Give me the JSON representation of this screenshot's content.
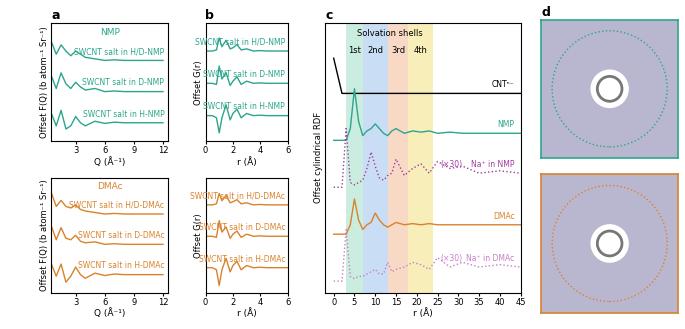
{
  "chart_data": [
    {
      "type": "line",
      "title": "a",
      "annotations": [
        "NMP"
      ],
      "annotation_color": "#2ca58d",
      "xlabel": "Q (Å⁻¹)",
      "ylabel": "Offset F(Q) (b atom⁻¹ Sr⁻¹)",
      "x": [
        0.5,
        1,
        1.5,
        2,
        2.5,
        3,
        3.5,
        4,
        5,
        6,
        7,
        8,
        9,
        10,
        11,
        12
      ],
      "xlim": [
        0.5,
        12.5
      ],
      "xticks": [
        3,
        6,
        9,
        12
      ],
      "ylim": [
        -0.6,
        3.2
      ],
      "tick_labels": "x",
      "series": [
        {
          "name": "SWCNT salt in H/D-NMP",
          "color": "#2ca58d",
          "values": [
            2.6,
            2.2,
            2.5,
            2.3,
            2.15,
            2.3,
            2.2,
            2.1,
            2.05,
            2.0,
            2.02,
            2.0,
            2.0,
            2.0,
            2.0,
            2.0
          ]
        },
        {
          "name": "SWCNT salt in D-NMP",
          "color": "#2ca58d",
          "values": [
            1.5,
            1.1,
            1.6,
            1.25,
            1.1,
            1.3,
            1.15,
            1.05,
            1.1,
            1.0,
            1.02,
            1.0,
            1.0,
            1.0,
            1.0,
            1.0
          ]
        },
        {
          "name": "SWCNT salt in H-NMP",
          "color": "#2ca58d",
          "values": [
            0.3,
            -0.1,
            0.4,
            -0.2,
            -0.1,
            0.2,
            0.0,
            -0.1,
            0.05,
            -0.02,
            0.02,
            0.0,
            0.0,
            0.0,
            0.0,
            0.0
          ]
        }
      ]
    },
    {
      "type": "line",
      "annotations": [
        "DMAc"
      ],
      "annotation_color": "#d9822b",
      "xlabel": "Q (Å⁻¹)",
      "ylabel": "Offset F(Q) (b atom⁻¹ Sr⁻¹)",
      "x": [
        0.5,
        1,
        1.5,
        2,
        2.5,
        3,
        3.5,
        4,
        5,
        6,
        7,
        8,
        9,
        10,
        11,
        12
      ],
      "xlim": [
        0.5,
        12.5
      ],
      "xticks": [
        3,
        6,
        9,
        12
      ],
      "ylim": [
        -0.6,
        3.2
      ],
      "tick_labels": "x",
      "series": [
        {
          "name": "SWCNT salt in H/D-DMAc",
          "color": "#d9822b",
          "values": [
            2.7,
            2.25,
            2.45,
            2.25,
            2.2,
            2.3,
            2.15,
            2.1,
            2.05,
            2.0,
            2.02,
            2.0,
            2.0,
            2.0,
            2.0,
            2.0
          ]
        },
        {
          "name": "SWCNT salt in D-DMAc",
          "color": "#d9822b",
          "values": [
            1.6,
            1.15,
            1.55,
            1.2,
            1.15,
            1.3,
            1.1,
            1.05,
            1.08,
            1.0,
            1.02,
            1.0,
            1.0,
            1.0,
            1.0,
            1.0
          ]
        },
        {
          "name": "SWCNT salt in H-DMAc",
          "color": "#d9822b",
          "values": [
            0.35,
            -0.05,
            0.35,
            -0.25,
            -0.05,
            0.25,
            0.0,
            -0.12,
            0.05,
            -0.03,
            0.02,
            0.0,
            0.0,
            0.0,
            0.0,
            0.0
          ]
        }
      ]
    },
    {
      "type": "line",
      "title": "b",
      "xlabel": "r (Å)",
      "ylabel": "Offset G(r)",
      "x": [
        0,
        0.5,
        0.8,
        1.0,
        1.2,
        1.5,
        1.8,
        2.0,
        2.3,
        2.6,
        3,
        3.5,
        4,
        4.5,
        5,
        5.5,
        6
      ],
      "xlim": [
        0,
        6
      ],
      "xticks": [
        0,
        2,
        4,
        6
      ],
      "ylim": [
        -1.2,
        4.3
      ],
      "tick_labels": "x",
      "series": [
        {
          "name": "SWCNT salt in H/D-NMP",
          "color": "#2ca58d",
          "values": [
            3,
            3,
            3.05,
            3.6,
            3.2,
            3.5,
            3.1,
            3.15,
            3.3,
            3.05,
            3.1,
            3.0,
            3.02,
            3.0,
            3.0,
            3.0,
            3.0
          ]
        },
        {
          "name": "SWCNT salt in D-NMP",
          "color": "#2ca58d",
          "values": [
            1.5,
            1.5,
            1.45,
            2.3,
            1.7,
            2.0,
            1.4,
            1.6,
            1.8,
            1.45,
            1.6,
            1.5,
            1.52,
            1.5,
            1.5,
            1.5,
            1.5
          ]
        },
        {
          "name": "SWCNT salt in H-NMP",
          "color": "#2ca58d",
          "values": [
            0,
            0,
            -0.1,
            -0.8,
            -0.1,
            0.5,
            -0.2,
            0.1,
            0.3,
            -0.1,
            0.1,
            0,
            0.02,
            0,
            0,
            0,
            0
          ]
        }
      ]
    },
    {
      "type": "line",
      "xlabel": "r (Å)",
      "ylabel": "Offset G(r)",
      "x": [
        0,
        0.5,
        0.8,
        1.0,
        1.2,
        1.5,
        1.8,
        2.0,
        2.3,
        2.6,
        3,
        3.5,
        4,
        4.5,
        5,
        5.5,
        6
      ],
      "xlim": [
        0,
        6
      ],
      "xticks": [
        0,
        2,
        4,
        6
      ],
      "ylim": [
        -1.2,
        4.3
      ],
      "tick_labels": "x",
      "series": [
        {
          "name": "SWCNT salt in H/D-DMAc",
          "color": "#d9822b",
          "values": [
            3,
            3,
            3.05,
            3.55,
            3.2,
            3.45,
            3.1,
            3.15,
            3.25,
            3.05,
            3.1,
            3.0,
            3.02,
            3.0,
            3.0,
            3.0,
            3.0
          ]
        },
        {
          "name": "SWCNT salt in D-DMAc",
          "color": "#d9822b",
          "values": [
            1.5,
            1.5,
            1.45,
            2.25,
            1.7,
            1.95,
            1.4,
            1.6,
            1.75,
            1.45,
            1.6,
            1.5,
            1.52,
            1.5,
            1.5,
            1.5,
            1.5
          ]
        },
        {
          "name": "SWCNT salt in H-DMAc",
          "color": "#d9822b",
          "values": [
            0,
            0,
            -0.1,
            -0.85,
            -0.1,
            0.45,
            -0.2,
            0.1,
            0.3,
            -0.1,
            0.1,
            0,
            0.02,
            0,
            0,
            0,
            0
          ]
        }
      ]
    },
    {
      "type": "line",
      "title": "c",
      "xlabel": "r (Å)",
      "ylabel": "Offset cylindrical RDF",
      "shells_title": "Solvation shells",
      "shells": [
        {
          "name": "1st",
          "range": [
            3,
            7
          ],
          "color": "#bfe9d9"
        },
        {
          "name": "2nd",
          "range": [
            7,
            13
          ],
          "color": "#bcd6f2"
        },
        {
          "name": "3rd",
          "range": [
            13,
            18
          ],
          "color": "#f7d0b8"
        },
        {
          "name": "4th",
          "range": [
            18,
            24
          ],
          "color": "#f6eaa8"
        }
      ],
      "x": [
        0,
        2,
        3,
        4,
        5,
        6,
        7,
        8,
        9,
        10,
        11,
        12,
        13,
        14,
        15,
        17,
        19,
        21,
        23,
        25,
        28,
        31,
        35,
        40,
        45
      ],
      "xlim": [
        -2,
        45
      ],
      "xticks": [
        0,
        5,
        10,
        15,
        20,
        25,
        30,
        35,
        40,
        45
      ],
      "ylim": [
        -0.5,
        11
      ],
      "tick_labels": "x",
      "series": [
        {
          "name": "CNTⁿ⁻",
          "color": "#000000",
          "line_style": "solid",
          "values": [
            9.5,
            8,
            8,
            8,
            8,
            8,
            8,
            8,
            8,
            8,
            8,
            8,
            8,
            8,
            8,
            8,
            8,
            8,
            8,
            8,
            8,
            8,
            8,
            8,
            8
          ]
        },
        {
          "name": "NMP",
          "color": "#2ca58d",
          "line_style": "solid",
          "values": [
            6,
            6,
            6,
            6.5,
            8.2,
            6.8,
            6.2,
            6.4,
            6.5,
            6.7,
            6.5,
            6.3,
            6.2,
            6.4,
            6.5,
            6.3,
            6.4,
            6.35,
            6.4,
            6.3,
            6.35,
            6.3,
            6.3,
            6.3,
            6.3
          ]
        },
        {
          "name": "Na⁺ in NMP",
          "annotation": "(×30)",
          "color": "#a03ca0",
          "line_style": "dotted",
          "values": [
            4,
            4,
            6.5,
            4.2,
            4.1,
            4.2,
            4.3,
            4.8,
            5.5,
            4.9,
            4.4,
            4.3,
            4.5,
            4.6,
            5.2,
            4.5,
            4.8,
            5.0,
            4.6,
            5.1,
            4.8,
            4.9,
            4.6,
            4.7,
            4.6
          ]
        },
        {
          "name": "DMAc",
          "color": "#d9822b",
          "line_style": "solid",
          "values": [
            2,
            2,
            2,
            2.4,
            3.5,
            2.6,
            2.2,
            2.4,
            2.5,
            2.9,
            2.6,
            2.4,
            2.3,
            2.4,
            2.5,
            2.4,
            2.45,
            2.4,
            2.45,
            2.4,
            2.4,
            2.4,
            2.4,
            2.4,
            2.4
          ]
        },
        {
          "name": "Na⁺ in DMAc",
          "annotation": "(×30)",
          "color": "#c77dc7",
          "line_style": "dotted",
          "values": [
            0,
            0,
            2.2,
            0.2,
            0.1,
            0.2,
            0.2,
            0.3,
            0.4,
            0.5,
            0.3,
            0.3,
            0.8,
            0.4,
            0.5,
            0.6,
            0.8,
            0.7,
            0.5,
            1.0,
            0.6,
            0.8,
            0.6,
            0.7,
            0.6
          ]
        }
      ]
    },
    {
      "type": "image",
      "title": "d",
      "color": "#2ca58d"
    },
    {
      "type": "image",
      "color": "#d9822b"
    }
  ]
}
